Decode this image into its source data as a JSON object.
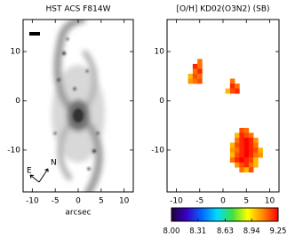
{
  "chart_data": [
    {
      "type": "image",
      "title": "HST ACS F814W",
      "xlabel": "arcsec",
      "xlim": [
        -12,
        12
      ],
      "ylim": [
        -18.5,
        16.5
      ],
      "xticks": [
        -10,
        -5,
        0,
        5,
        10
      ],
      "yticks": [
        -10,
        0,
        10
      ],
      "annotations": [
        "E",
        "N"
      ]
    },
    {
      "type": "pixelmap",
      "title": "[O/H]  KD02(O3N2)  (SB)",
      "xlim": [
        -12,
        12
      ],
      "ylim": [
        -18.5,
        16.5
      ],
      "xticks": [
        -10,
        -5,
        0,
        5,
        10
      ],
      "yticks": [
        -10,
        0,
        10
      ],
      "x": [
        -5,
        -6,
        -5,
        -6,
        -5,
        -7,
        -6,
        -5,
        -7,
        -6,
        -5,
        2,
        2,
        3,
        1,
        2,
        3,
        4,
        5,
        3,
        4,
        5,
        6,
        3,
        4,
        5,
        6,
        7,
        2,
        3,
        4,
        5,
        6,
        7,
        2,
        3,
        4,
        5,
        6,
        7,
        8,
        2,
        3,
        4,
        5,
        6,
        7,
        8,
        2,
        3,
        4,
        5,
        6,
        7,
        3,
        4,
        5,
        6,
        7,
        4,
        5,
        6
      ],
      "y": [
        8,
        7,
        7,
        6,
        6,
        5,
        5,
        5,
        4,
        4,
        4,
        4,
        3,
        3,
        2,
        2,
        2,
        -6,
        -6,
        -7,
        -7,
        -7,
        -7,
        -8,
        -8,
        -8,
        -8,
        -8,
        -9,
        -9,
        -9,
        -9,
        -9,
        -9,
        -10,
        -10,
        -10,
        -10,
        -10,
        -10,
        -10,
        -11,
        -11,
        -11,
        -11,
        -11,
        -11,
        -11,
        -12,
        -12,
        -12,
        -12,
        -12,
        -12,
        -13,
        -13,
        -13,
        -13,
        -13,
        -14,
        -14,
        -14
      ],
      "values": [
        9.1,
        9.2,
        9.1,
        9.1,
        9.2,
        9.0,
        9.15,
        9.1,
        9.05,
        9.1,
        9.15,
        9.1,
        9.2,
        9.1,
        9.0,
        9.15,
        9.2,
        9.15,
        9.1,
        9.0,
        9.2,
        9.15,
        9.1,
        9.1,
        9.2,
        9.25,
        9.2,
        9.05,
        9.0,
        9.15,
        9.2,
        9.25,
        9.2,
        9.1,
        9.05,
        9.1,
        9.2,
        9.25,
        9.2,
        9.15,
        9.0,
        9.0,
        9.15,
        9.2,
        9.25,
        9.2,
        9.1,
        9.05,
        9.1,
        9.2,
        9.25,
        9.2,
        9.15,
        9.0,
        9.05,
        9.15,
        9.2,
        9.1,
        9.0,
        9.1,
        9.0,
        9.15
      ],
      "colormap": [
        "#200038",
        "#3a00c8",
        "#0068ff",
        "#00dcff",
        "#40e040",
        "#ffff00",
        "#ff8800",
        "#ff0000"
      ],
      "clim": [
        8,
        9.25
      ],
      "cticks": [
        {
          "value": 8,
          "label": "8.00"
        },
        {
          "value": 8.31,
          "label": "8.31"
        },
        {
          "value": 8.63,
          "label": "8.63"
        },
        {
          "value": 8.94,
          "label": "8.94"
        },
        {
          "value": 9.25,
          "label": "9.25"
        }
      ]
    }
  ]
}
